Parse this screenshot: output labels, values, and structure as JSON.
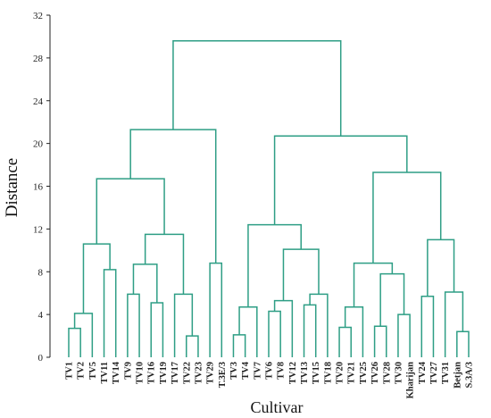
{
  "chart_data": {
    "type": "dendrogram",
    "xlabel": "Cultivar",
    "ylabel": "Distance",
    "ylim": [
      0,
      32
    ],
    "yticks": [
      0,
      4,
      8,
      12,
      16,
      20,
      24,
      28,
      32
    ],
    "line_color": "#2e9e85",
    "leaves": [
      "TV1",
      "TV2",
      "TV5",
      "TV11",
      "TV14",
      "TV9",
      "TV10",
      "TV16",
      "TV19",
      "TV17",
      "TV22",
      "TV23",
      "TV29",
      "T.3E/3",
      "TV3",
      "TV4",
      "TV7",
      "TV6",
      "TV8",
      "TV12",
      "TV13",
      "TV15",
      "TV18",
      "TV20",
      "TV21",
      "TV25",
      "TV26",
      "TV28",
      "TV30",
      "Kharijan",
      "TV24",
      "TV27",
      "TV31",
      "Betjan",
      "S.3A/3"
    ],
    "merges": [
      {
        "id": "m1",
        "left": "TV1",
        "right": "TV2",
        "height": 2.7
      },
      {
        "id": "m2",
        "left": "m1",
        "right": "TV5",
        "height": 4.1
      },
      {
        "id": "m3",
        "left": "TV11",
        "right": "TV14",
        "height": 8.2
      },
      {
        "id": "m4",
        "left": "m2",
        "right": "m3",
        "height": 10.6
      },
      {
        "id": "m5",
        "left": "TV9",
        "right": "TV10",
        "height": 5.9
      },
      {
        "id": "m6",
        "left": "TV16",
        "right": "TV19",
        "height": 5.1
      },
      {
        "id": "m7",
        "left": "m5",
        "right": "m6",
        "height": 8.7
      },
      {
        "id": "m8",
        "left": "TV22",
        "right": "TV23",
        "height": 2.0
      },
      {
        "id": "m9",
        "left": "TV17",
        "right": "m8",
        "height": 5.9
      },
      {
        "id": "m10",
        "left": "m7",
        "right": "m9",
        "height": 11.5
      },
      {
        "id": "m11",
        "left": "m4",
        "right": "m10",
        "height": 16.7
      },
      {
        "id": "m12",
        "left": "TV29",
        "right": "T.3E/3",
        "height": 8.8
      },
      {
        "id": "m13",
        "left": "m11",
        "right": "m12",
        "height": 21.3
      },
      {
        "id": "m14",
        "left": "TV3",
        "right": "TV4",
        "height": 2.1
      },
      {
        "id": "m15",
        "left": "m14",
        "right": "TV7",
        "height": 4.7
      },
      {
        "id": "m16",
        "left": "TV6",
        "right": "TV8",
        "height": 4.3
      },
      {
        "id": "m17",
        "left": "m16",
        "right": "TV12",
        "height": 5.3
      },
      {
        "id": "m18",
        "left": "TV13",
        "right": "TV15",
        "height": 4.9
      },
      {
        "id": "m19",
        "left": "m18",
        "right": "TV18",
        "height": 5.9
      },
      {
        "id": "m20",
        "left": "m17",
        "right": "m19",
        "height": 10.1
      },
      {
        "id": "m21",
        "left": "m15",
        "right": "m20",
        "height": 12.4
      },
      {
        "id": "m22",
        "left": "TV20",
        "right": "TV21",
        "height": 2.8
      },
      {
        "id": "m23",
        "left": "m22",
        "right": "TV25",
        "height": 4.7
      },
      {
        "id": "m24",
        "left": "TV26",
        "right": "TV28",
        "height": 2.9
      },
      {
        "id": "m25",
        "left": "TV30",
        "right": "Kharijan",
        "height": 4.0
      },
      {
        "id": "m26",
        "left": "m24",
        "right": "m25",
        "height": 7.8
      },
      {
        "id": "m27",
        "left": "m23",
        "right": "m26",
        "height": 8.8
      },
      {
        "id": "m28",
        "left": "TV24",
        "right": "TV27",
        "height": 5.7
      },
      {
        "id": "m29",
        "left": "Betjan",
        "right": "S.3A/3",
        "height": 2.4
      },
      {
        "id": "m30",
        "left": "TV31",
        "right": "m29",
        "height": 6.1
      },
      {
        "id": "m31",
        "left": "m28",
        "right": "m30",
        "height": 11.0
      },
      {
        "id": "m32",
        "left": "m27",
        "right": "m31",
        "height": 17.3
      },
      {
        "id": "m33",
        "left": "m21",
        "right": "m32",
        "height": 20.7
      },
      {
        "id": "m34",
        "left": "m13",
        "right": "m33",
        "height": 29.6
      }
    ]
  }
}
